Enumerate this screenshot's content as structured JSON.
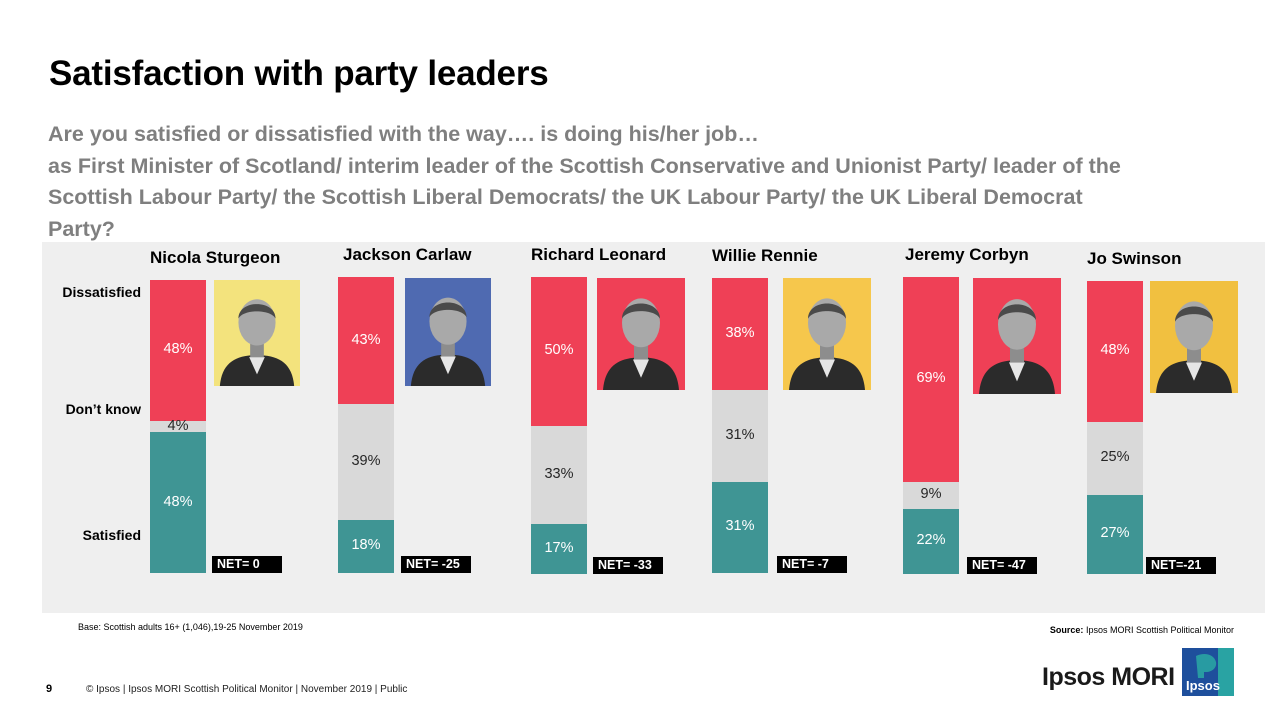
{
  "title": "Satisfaction with party leaders",
  "question_lines": [
    "Are you satisfied or dissatisfied with the way…. is doing his/her job…",
    "as First Minister of Scotland/ interim leader of the Scottish Conservative and Unionist Party/ leader of the",
    "Scottish Labour Party/ the Scottish Liberal Democrats/ the UK Labour Party/ the UK Liberal Democrat",
    "Party?"
  ],
  "chart_data": {
    "type": "bar",
    "stacked": true,
    "orientation": "vertical",
    "categories": [
      "Nicola Sturgeon",
      "Jackson Carlaw",
      "Richard Leonard",
      "Willie Rennie",
      "Jeremy Corbyn",
      "Jo Swinson"
    ],
    "series": [
      {
        "name": "Satisfied",
        "values": [
          48,
          18,
          17,
          31,
          22,
          27
        ],
        "labels": [
          "48%",
          "18%",
          "17%",
          "31%",
          "22%",
          "27%"
        ],
        "color": "#3f9594"
      },
      {
        "name": "Don’t know",
        "values": [
          4,
          39,
          33,
          31,
          9,
          25
        ],
        "labels": [
          "4%",
          "39%",
          "33%",
          "31%",
          "9%",
          "25%"
        ],
        "color": "#d9d9d9"
      },
      {
        "name": "Dissatisfied",
        "values": [
          48,
          43,
          50,
          38,
          69,
          48
        ],
        "labels": [
          "48%",
          "43%",
          "50%",
          "38%",
          "69%",
          "48%"
        ],
        "color": "#ef4056"
      }
    ],
    "net_labels": [
      "NET= 0",
      "NET= -25",
      "NET= -33",
      "NET= -7",
      "NET= -47",
      "NET=-21"
    ],
    "axis_labels": {
      "top": "Dissatisfied",
      "middle": "Don’t know",
      "bottom": "Satisfied"
    },
    "ylim": [
      0,
      100
    ]
  },
  "portrait_colors": [
    "#f3e37d",
    "#4f6ab1",
    "#ef4056",
    "#f6c74c",
    "#ef4056",
    "#f1c040"
  ],
  "base_note": "Base: Scottish adults 16+ (1,046),19-25  November 2019",
  "source_label": "Source:",
  "source_text": " Ipsos MORI Scottish Political Monitor",
  "page_number": "9",
  "footer": "© Ipsos | Ipsos MORI  Scottish Political Monitor | November  2019 | Public",
  "brand": "Ipsos MORI",
  "logo_text": "Ipsos",
  "colors": {
    "logo_blue": "#1e4f9c",
    "logo_teal": "#29a3a3"
  }
}
